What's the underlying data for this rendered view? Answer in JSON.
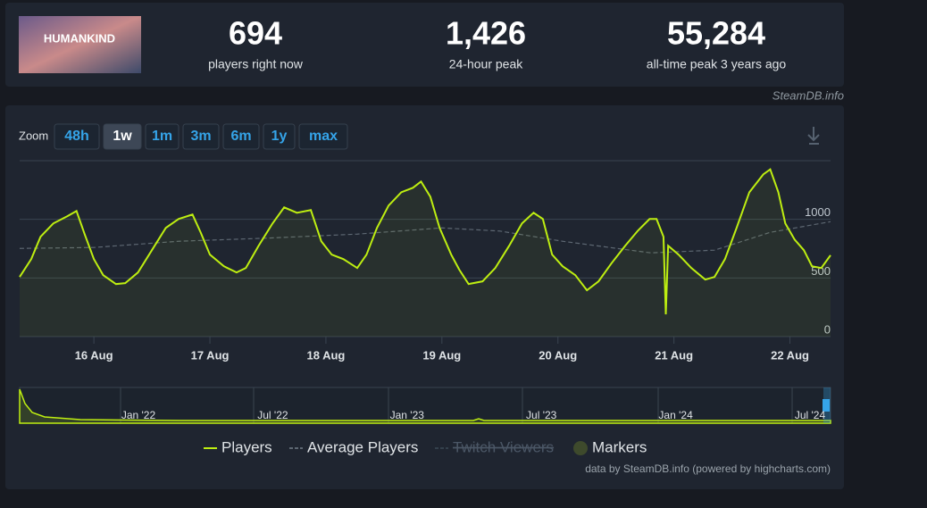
{
  "header": {
    "game_title": "HUMANKIND",
    "stats": [
      {
        "value": "694",
        "label": "players right now"
      },
      {
        "value": "1,426",
        "label": "24-hour peak"
      },
      {
        "value": "55,284",
        "label": "all-time peak 3 years ago"
      }
    ],
    "source": "SteamDB.info"
  },
  "zoom": {
    "label": "Zoom",
    "options": [
      "48h",
      "1w",
      "1m",
      "3m",
      "6m",
      "1y",
      "max"
    ],
    "active_index": 1
  },
  "chart_data": {
    "type": "line",
    "x": [
      15.36,
      15.46,
      15.54,
      15.65,
      15.77,
      15.85,
      15.92,
      16.0,
      16.08,
      16.19,
      16.27,
      16.38,
      16.5,
      16.62,
      16.73,
      16.85,
      16.92,
      17.0,
      17.12,
      17.23,
      17.31,
      17.42,
      17.54,
      17.64,
      17.75,
      17.87,
      17.96,
      18.05,
      18.15,
      18.27,
      18.35,
      18.44,
      18.54,
      18.65,
      18.75,
      18.82,
      18.9,
      18.98,
      19.08,
      19.15,
      19.23,
      19.35,
      19.46,
      19.58,
      19.69,
      19.79,
      19.87,
      19.95,
      20.04,
      20.15,
      20.25,
      20.35,
      20.46,
      20.58,
      20.69,
      20.79,
      20.85,
      20.91,
      20.93,
      20.95,
      21.04,
      21.15,
      21.27,
      21.35,
      21.44,
      21.54,
      21.65,
      21.77,
      21.83,
      21.9,
      21.96,
      22.04,
      22.12,
      22.19,
      22.27,
      22.35
    ],
    "xlim": [
      15.36,
      22.35
    ],
    "xticks": [
      {
        "value": 16,
        "label": "16 Aug"
      },
      {
        "value": 17,
        "label": "17 Aug"
      },
      {
        "value": 18,
        "label": "18 Aug"
      },
      {
        "value": 19,
        "label": "19 Aug"
      },
      {
        "value": 20,
        "label": "20 Aug"
      },
      {
        "value": 21,
        "label": "21 Aug"
      },
      {
        "value": 22,
        "label": "22 Aug"
      }
    ],
    "ylim": [
      0,
      1500
    ],
    "yticks": [
      0,
      500,
      1000
    ],
    "grid": true,
    "series": [
      {
        "name": "Players",
        "color": "#beee11",
        "values": [
          509,
          661,
          851,
          965,
          1026,
          1071,
          874,
          661,
          524,
          448,
          456,
          547,
          737,
          927,
          1003,
          1041,
          889,
          699,
          600,
          547,
          585,
          775,
          965,
          1102,
          1056,
          1079,
          813,
          699,
          661,
          585,
          699,
          927,
          1117,
          1231,
          1269,
          1322,
          1193,
          927,
          699,
          570,
          448,
          471,
          585,
          775,
          965,
          1056,
          1003,
          699,
          600,
          524,
          395,
          471,
          623,
          775,
          904,
          1003,
          1003,
          851,
          190,
          775,
          699,
          585,
          486,
          509,
          661,
          927,
          1231,
          1383,
          1426,
          1231,
          965,
          828,
          737,
          600,
          585,
          694
        ]
      },
      {
        "name": "Average Players",
        "color": "#5d6772",
        "x": [
          15.36,
          16.0,
          16.73,
          17.5,
          18.27,
          19.0,
          19.5,
          20.04,
          20.8,
          21.35,
          21.83,
          22.35
        ],
        "values": [
          752,
          760,
          813,
          840,
          874,
          927,
          900,
          813,
          714,
          737,
          889,
          980
        ]
      }
    ],
    "other_legend": [
      {
        "name": "Twitch Viewers",
        "hidden": true
      },
      {
        "name": "Markers"
      }
    ]
  },
  "navigator": {
    "labels": [
      "Jan '22",
      "Jul '22",
      "Jan '23",
      "Jul '23",
      "Jan '24",
      "Jul '24"
    ]
  },
  "credits": "data by SteamDB.info (powered by highcharts.com)"
}
